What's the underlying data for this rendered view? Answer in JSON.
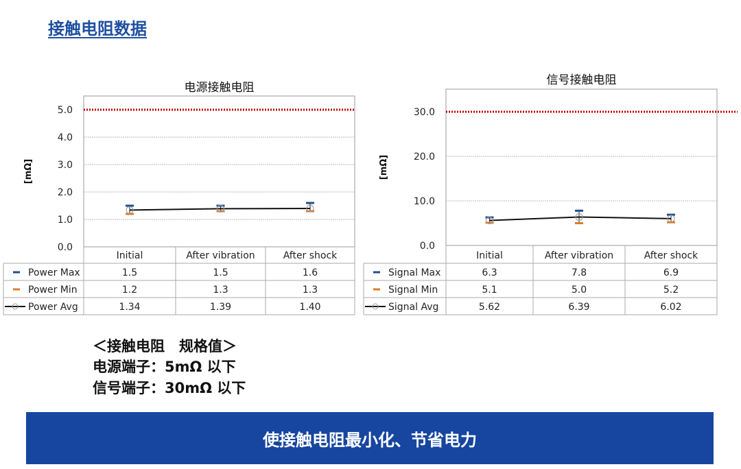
{
  "page_title": "接触电阻数据",
  "colors": {
    "title": "#1f4fa0",
    "banner": "#1746a0",
    "max": "#1f4e8c",
    "min": "#e07b2a",
    "avg": "#111111",
    "limit": "#c00000",
    "grid": "#bbbbbb"
  },
  "chart_data": [
    {
      "type": "line",
      "title": "电源接触电阻",
      "ylabel": "[mΩ]",
      "ylim": [
        0,
        5
      ],
      "yticks": [
        "0.0",
        "1.0",
        "2.0",
        "3.0",
        "4.0",
        "5.0"
      ],
      "grid": true,
      "limit_line": 5.0,
      "categories": [
        "Initial",
        "After vibration",
        "After shock"
      ],
      "series": [
        {
          "name": "Power Max",
          "values": [
            1.5,
            1.5,
            1.6
          ],
          "labels": [
            "1.5",
            "1.5",
            "1.6"
          ]
        },
        {
          "name": "Power Min",
          "values": [
            1.2,
            1.3,
            1.3
          ],
          "labels": [
            "1.2",
            "1.3",
            "1.3"
          ]
        },
        {
          "name": "Power Avg",
          "values": [
            1.34,
            1.39,
            1.4
          ],
          "labels": [
            "1.34",
            "1.39",
            "1.40"
          ]
        }
      ]
    },
    {
      "type": "line",
      "title": "信号接触电阻",
      "ylabel": "[mΩ]",
      "ylim": [
        0,
        30
      ],
      "yticks": [
        "0.0",
        "10.0",
        "20.0",
        "30.0"
      ],
      "grid": true,
      "limit_line": 30.0,
      "categories": [
        "Initial",
        "After vibration",
        "After shock"
      ],
      "series": [
        {
          "name": "Signal Max",
          "values": [
            6.3,
            7.8,
            6.9
          ],
          "labels": [
            "6.3",
            "7.8",
            "6.9"
          ]
        },
        {
          "name": "Signal Min",
          "values": [
            5.1,
            5.0,
            5.2
          ],
          "labels": [
            "5.1",
            "5.0",
            "5.2"
          ]
        },
        {
          "name": "Signal Avg",
          "values": [
            5.62,
            6.39,
            6.02
          ],
          "labels": [
            "5.62",
            "6.39",
            "6.02"
          ]
        }
      ]
    }
  ],
  "spec": {
    "heading": "＜接触电阻　规格值＞",
    "power": "电源端子：5mΩ 以下",
    "signal": "信号端子：30mΩ 以下"
  },
  "banner": "使接触电阻最小化、节省电力"
}
